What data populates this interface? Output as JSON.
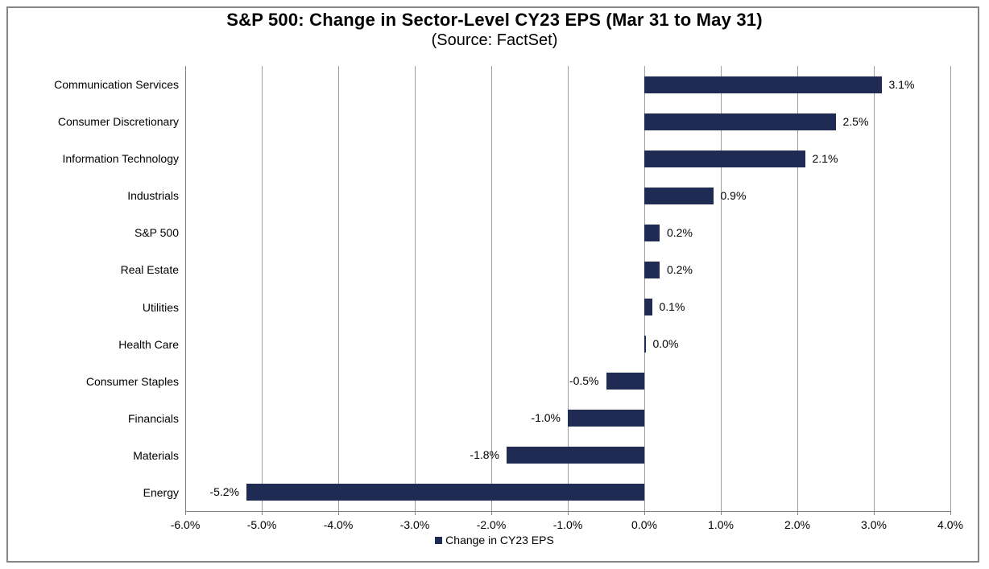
{
  "title": "S&P 500: Change in Sector-Level CY23 EPS (Mar 31 to May 31)",
  "subtitle": "(Source: FactSet)",
  "legend": {
    "label": "Change in CY23 EPS"
  },
  "colors": {
    "bar": "#1f2b52",
    "gridline": "#9e9e9e",
    "axis": "#808080",
    "frame": "#858585",
    "text": "#000000"
  },
  "chart_data": {
    "type": "bar",
    "orientation": "horizontal",
    "title": "S&P 500: Change in Sector-Level CY23 EPS (Mar 31 to May 31)",
    "subtitle": "(Source: FactSet)",
    "series_name": "Change in CY23 EPS",
    "categories": [
      "Communication Services",
      "Consumer Discretionary",
      "Information Technology",
      "Industrials",
      "S&P 500",
      "Real Estate",
      "Utilities",
      "Health Care",
      "Consumer Staples",
      "Financials",
      "Materials",
      "Energy"
    ],
    "values": [
      3.1,
      2.5,
      2.1,
      0.9,
      0.2,
      0.2,
      0.1,
      0.0,
      -0.5,
      -1.0,
      -1.8,
      -5.2
    ],
    "value_labels": [
      "3.1%",
      "2.5%",
      "2.1%",
      "0.9%",
      "0.2%",
      "0.2%",
      "0.1%",
      "0.0%",
      "-0.5%",
      "-1.0%",
      "-1.8%",
      "-5.2%"
    ],
    "xlabel": "",
    "ylabel": "",
    "xlim": [
      -6.0,
      4.0
    ],
    "x_ticks": [
      -6,
      -5,
      -4,
      -3,
      -2,
      -1,
      0,
      1,
      2,
      3,
      4
    ],
    "x_tick_labels": [
      "-6.0%",
      "-5.0%",
      "-4.0%",
      "-3.0%",
      "-2.0%",
      "-1.0%",
      "0.0%",
      "1.0%",
      "2.0%",
      "3.0%",
      "4.0%"
    ],
    "grid": "vertical",
    "legend_position": "bottom"
  }
}
